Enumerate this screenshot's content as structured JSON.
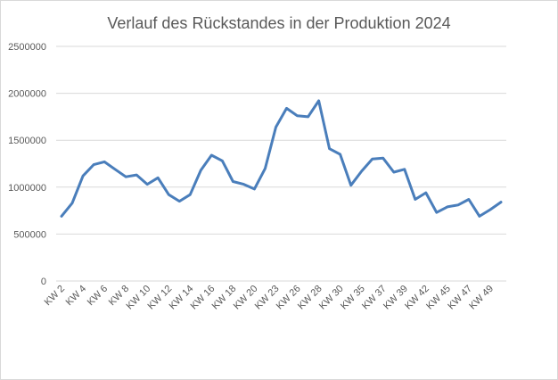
{
  "chart_data": {
    "type": "line",
    "title": "Verlauf des Rückstandes in der Produktion 2024",
    "xlabel": "",
    "ylabel": "",
    "ylim": [
      0,
      2500000
    ],
    "yticks": [
      "0",
      "500000",
      "1000000",
      "1500000",
      "2000000",
      "2500000"
    ],
    "grid": true,
    "line_color": "#4a7ebb",
    "x_tick_labels": [
      "KW 2",
      "KW 4",
      "KW 6",
      "KW 8",
      "KW 10",
      "KW 12",
      "KW 14",
      "KW 16",
      "KW 18",
      "KW 20",
      "KW 23",
      "KW 26",
      "KW 28",
      "KW 30",
      "KW 35",
      "KW 37",
      "KW 39",
      "KW 42",
      "KW 45",
      "KW 47",
      "KW 49"
    ],
    "x_tick_indices": [
      0,
      2,
      4,
      6,
      8,
      10,
      12,
      14,
      16,
      18,
      20,
      22,
      24,
      26,
      28,
      30,
      32,
      34,
      36,
      38,
      40
    ],
    "series": [
      {
        "values": [
          690000,
          830000,
          1120000,
          1240000,
          1270000,
          1190000,
          1110000,
          1130000,
          1030000,
          1100000,
          920000,
          850000,
          920000,
          1180000,
          1340000,
          1280000,
          1060000,
          1030000,
          980000,
          1200000,
          1640000,
          1840000,
          1760000,
          1750000,
          1920000,
          1410000,
          1350000,
          1020000,
          1170000,
          1300000,
          1310000,
          1160000,
          1190000,
          870000,
          940000,
          730000,
          790000,
          810000,
          870000,
          690000,
          760000,
          840000
        ]
      }
    ]
  }
}
